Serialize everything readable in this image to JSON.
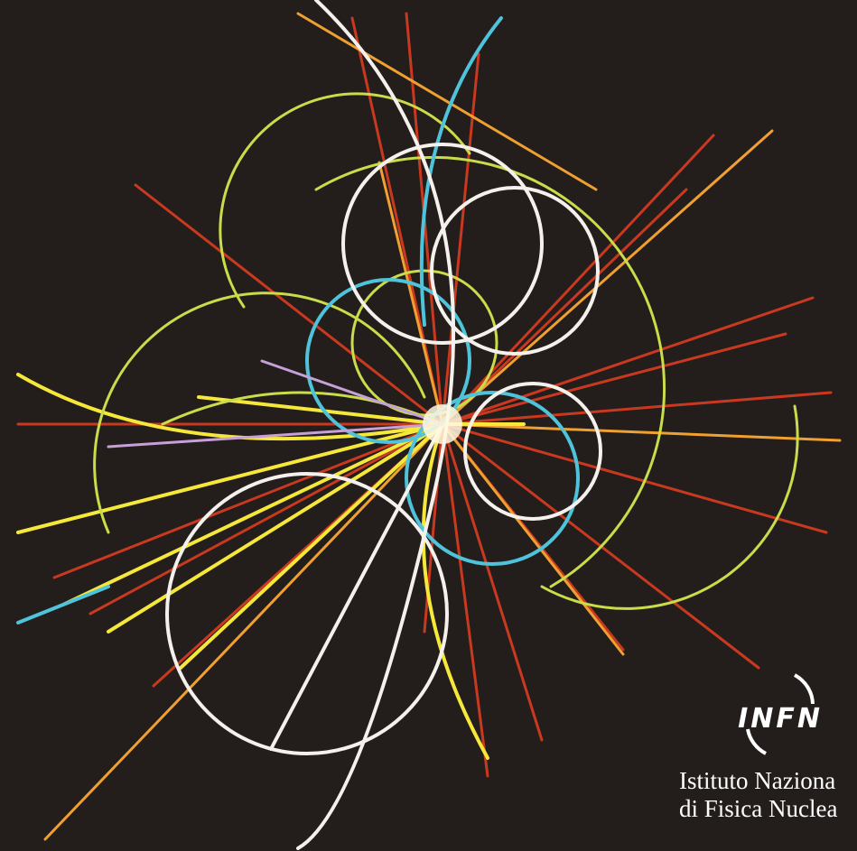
{
  "logo": {
    "acronym": "INFN",
    "line1": "Istituto Naziona",
    "line2": "di Fisica Nuclea"
  }
}
